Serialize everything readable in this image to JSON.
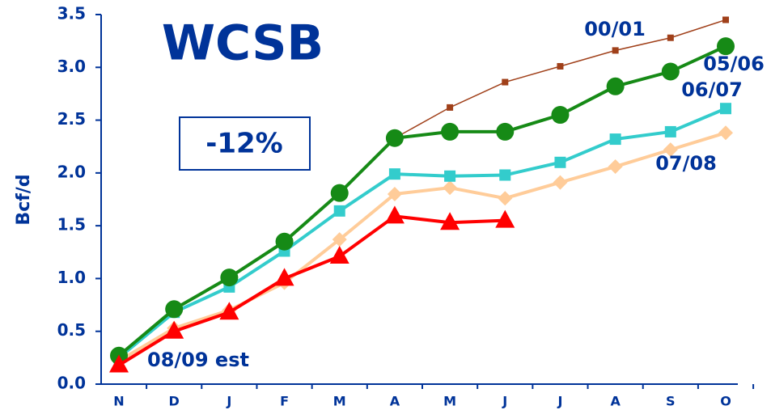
{
  "chart_data": {
    "type": "line",
    "title": "WCSB",
    "annotation": "-12%",
    "y_label": "Bcf/d",
    "categories": [
      "N",
      "D",
      "J",
      "F",
      "M",
      "A",
      "M",
      "J",
      "J",
      "A",
      "S",
      "O"
    ],
    "series": [
      {
        "name": "00/01",
        "color": "#a0401a",
        "marker": "small-square",
        "values": [
          null,
          null,
          null,
          null,
          null,
          2.33,
          2.62,
          2.86,
          3.01,
          3.16,
          3.28,
          3.45
        ]
      },
      {
        "name": "05/06",
        "color": "#168a16",
        "marker": "circle",
        "values": [
          0.27,
          0.71,
          1.01,
          1.35,
          1.81,
          2.33,
          2.39,
          2.39,
          2.55,
          2.82,
          2.96,
          3.2
        ]
      },
      {
        "name": "06/07",
        "color": "#33cccc",
        "marker": "square",
        "values": [
          0.25,
          0.68,
          0.92,
          1.26,
          1.64,
          1.99,
          1.97,
          1.98,
          2.1,
          2.32,
          2.39,
          2.61
        ]
      },
      {
        "name": "07/08",
        "color": "#ffcc99",
        "marker": "diamond",
        "values": [
          0.22,
          0.53,
          0.7,
          0.96,
          1.37,
          1.8,
          1.86,
          1.76,
          1.91,
          2.06,
          2.22,
          2.38
        ]
      },
      {
        "name": "08/09 est",
        "color": "#ff0000",
        "marker": "triangle",
        "values": [
          0.18,
          0.5,
          0.68,
          1.0,
          1.21,
          1.59,
          1.53,
          1.55,
          null,
          null,
          null,
          null
        ]
      }
    ],
    "ylim": [
      0,
      3.5
    ],
    "yticks": [
      {
        "value": 0,
        "label": "0.0"
      },
      {
        "value": 0.5,
        "label": "0.5"
      },
      {
        "value": 1,
        "label": "1.0"
      },
      {
        "value": 1.5,
        "label": "1.5"
      },
      {
        "value": 2,
        "label": "2.0"
      },
      {
        "value": 2.5,
        "label": "2.5"
      },
      {
        "value": 3,
        "label": "3.0"
      },
      {
        "value": 3.5,
        "label": "3.5"
      }
    ]
  }
}
